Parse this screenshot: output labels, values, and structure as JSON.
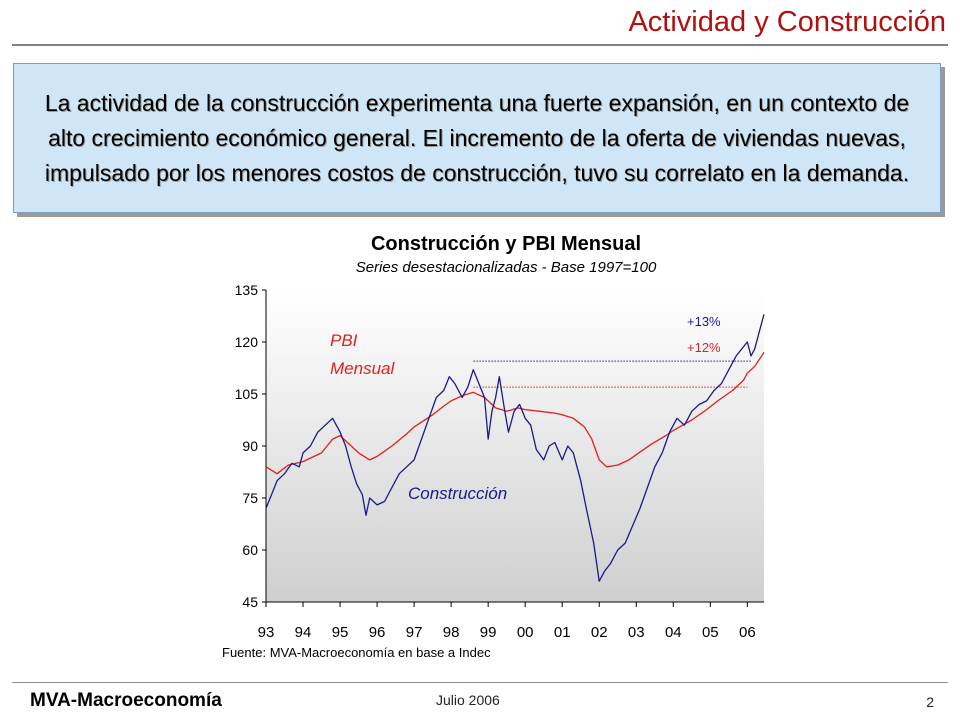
{
  "slide": {
    "title": "Actividad y Construcción",
    "summary": "La actividad de la construcción experimenta una fuerte expansión, en un contexto de alto crecimiento económico general. El incremento de la oferta de viviendas nuevas, impulsado por los menores costos de construcción, tuvo su correlato en la demanda."
  },
  "footer": {
    "brand": "MVA-Macroeconomía",
    "date": "Julio 2006",
    "page_number": "2"
  },
  "colors": {
    "title": "#b01010",
    "box_fill": "#cfe6f7",
    "pbi_line": "#e02020",
    "construccion_line": "#1a1a8c",
    "plus13": "#1a1aa0",
    "plus12": "#e02020"
  },
  "chart_data": {
    "type": "line",
    "title": "Construcción y PBI Mensual",
    "subtitle": "Series desestacionalizadas - Base 1997=100",
    "source": "Fuente: MVA-Macroeconomía en base a Indec",
    "x_tick_labels": [
      "93",
      "94",
      "95",
      "96",
      "97",
      "98",
      "99",
      "00",
      "01",
      "02",
      "03",
      "04",
      "05",
      "06"
    ],
    "y_ticks": [
      45,
      60,
      75,
      90,
      105,
      120,
      135
    ],
    "ylim": [
      45,
      135
    ],
    "xlim": [
      1993,
      2006.45
    ],
    "grid": false,
    "series": [
      {
        "name": "PBI Mensual",
        "color": "#e02020",
        "points": [
          [
            1993.0,
            84
          ],
          [
            1993.3,
            82
          ],
          [
            1993.6,
            84.5
          ],
          [
            1994.0,
            85.5
          ],
          [
            1994.5,
            88
          ],
          [
            1994.8,
            92
          ],
          [
            1995.0,
            93
          ],
          [
            1995.2,
            91
          ],
          [
            1995.5,
            88
          ],
          [
            1995.8,
            86
          ],
          [
            1996.0,
            87
          ],
          [
            1996.4,
            90
          ],
          [
            1996.8,
            93.5
          ],
          [
            1997.0,
            95.5
          ],
          [
            1997.5,
            99
          ],
          [
            1997.8,
            101.5
          ],
          [
            1998.0,
            103
          ],
          [
            1998.3,
            104.5
          ],
          [
            1998.6,
            105.5
          ],
          [
            1998.9,
            104
          ],
          [
            1999.2,
            101
          ],
          [
            1999.5,
            100
          ],
          [
            1999.8,
            101
          ],
          [
            2000.0,
            100.5
          ],
          [
            2000.4,
            100
          ],
          [
            2000.8,
            99.5
          ],
          [
            2001.0,
            99
          ],
          [
            2001.3,
            98
          ],
          [
            2001.6,
            95.5
          ],
          [
            2001.8,
            92
          ],
          [
            2002.0,
            86
          ],
          [
            2002.2,
            84
          ],
          [
            2002.5,
            84.5
          ],
          [
            2002.8,
            86
          ],
          [
            2003.0,
            87.5
          ],
          [
            2003.4,
            90.5
          ],
          [
            2003.8,
            93
          ],
          [
            2004.0,
            94.5
          ],
          [
            2004.5,
            97.5
          ],
          [
            2004.9,
            100.5
          ],
          [
            2005.2,
            103
          ],
          [
            2005.6,
            106
          ],
          [
            2005.9,
            109
          ],
          [
            2006.0,
            111
          ],
          [
            2006.2,
            113
          ],
          [
            2006.45,
            117
          ]
        ]
      },
      {
        "name": "Construcción",
        "color": "#1a1a8c",
        "points": [
          [
            1993.0,
            72
          ],
          [
            1993.15,
            76
          ],
          [
            1993.3,
            80
          ],
          [
            1993.5,
            82
          ],
          [
            1993.7,
            85
          ],
          [
            1993.9,
            84
          ],
          [
            1994.0,
            88
          ],
          [
            1994.2,
            90
          ],
          [
            1994.4,
            94
          ],
          [
            1994.6,
            96
          ],
          [
            1994.8,
            98
          ],
          [
            1995.0,
            94
          ],
          [
            1995.15,
            90
          ],
          [
            1995.3,
            84
          ],
          [
            1995.45,
            79
          ],
          [
            1995.6,
            76
          ],
          [
            1995.7,
            70
          ],
          [
            1995.8,
            75
          ],
          [
            1996.0,
            73
          ],
          [
            1996.2,
            74
          ],
          [
            1996.4,
            78
          ],
          [
            1996.6,
            82
          ],
          [
            1996.8,
            84
          ],
          [
            1997.0,
            86
          ],
          [
            1997.2,
            92
          ],
          [
            1997.4,
            98
          ],
          [
            1997.6,
            104
          ],
          [
            1997.8,
            106
          ],
          [
            1997.95,
            110
          ],
          [
            1998.1,
            108
          ],
          [
            1998.3,
            104
          ],
          [
            1998.45,
            107
          ],
          [
            1998.6,
            112
          ],
          [
            1998.75,
            108
          ],
          [
            1998.9,
            104
          ],
          [
            1999.0,
            92
          ],
          [
            1999.1,
            100
          ],
          [
            1999.2,
            104
          ],
          [
            1999.3,
            110
          ],
          [
            1999.45,
            100
          ],
          [
            1999.55,
            94
          ],
          [
            1999.7,
            100
          ],
          [
            1999.85,
            102
          ],
          [
            2000.0,
            98
          ],
          [
            2000.15,
            96
          ],
          [
            2000.3,
            89
          ],
          [
            2000.5,
            86
          ],
          [
            2000.65,
            90
          ],
          [
            2000.8,
            91
          ],
          [
            2001.0,
            86
          ],
          [
            2001.15,
            90
          ],
          [
            2001.3,
            88
          ],
          [
            2001.5,
            80
          ],
          [
            2001.65,
            72
          ],
          [
            2001.85,
            62
          ],
          [
            2002.0,
            51
          ],
          [
            2002.15,
            54
          ],
          [
            2002.3,
            56
          ],
          [
            2002.5,
            60
          ],
          [
            2002.7,
            62
          ],
          [
            2002.9,
            67
          ],
          [
            2003.1,
            72
          ],
          [
            2003.3,
            78
          ],
          [
            2003.5,
            84
          ],
          [
            2003.7,
            88
          ],
          [
            2003.9,
            94
          ],
          [
            2004.1,
            98
          ],
          [
            2004.3,
            96
          ],
          [
            2004.5,
            100
          ],
          [
            2004.7,
            102
          ],
          [
            2004.9,
            103
          ],
          [
            2005.1,
            106
          ],
          [
            2005.3,
            108
          ],
          [
            2005.5,
            112
          ],
          [
            2005.7,
            116
          ],
          [
            2005.85,
            118
          ],
          [
            2006.0,
            120
          ],
          [
            2006.1,
            116
          ],
          [
            2006.2,
            118
          ],
          [
            2006.3,
            122
          ],
          [
            2006.45,
            128
          ]
        ]
      }
    ],
    "labels": {
      "pbi": [
        "PBI",
        "Mensual"
      ],
      "construccion": "Construcción",
      "plus13": "+13%",
      "plus12": "+12%"
    },
    "reference_lines": [
      {
        "series": "Construcción",
        "value": 114.5,
        "from": 1998.6,
        "to": 2006.1
      },
      {
        "series": "PBI Mensual",
        "value": 107,
        "from": 1998.6,
        "to": 2006.0
      }
    ]
  }
}
